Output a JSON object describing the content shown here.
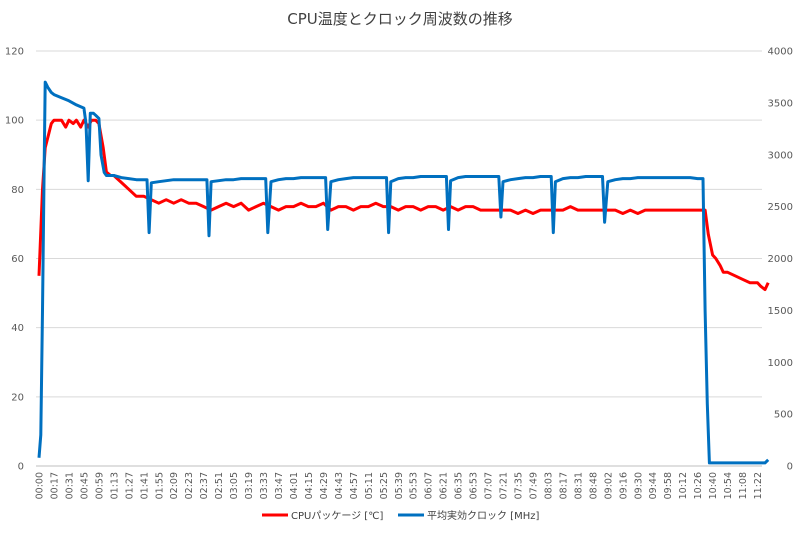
{
  "chart_data": {
    "type": "line",
    "title": "CPU温度とクロック周波数の推移",
    "x_tick_labels": [
      "00:00",
      "00:17",
      "00:31",
      "00:45",
      "00:59",
      "01:13",
      "01:27",
      "01:41",
      "01:55",
      "02:09",
      "02:23",
      "02:37",
      "02:51",
      "03:05",
      "03:19",
      "03:33",
      "03:47",
      "04:01",
      "04:15",
      "04:29",
      "04:43",
      "04:57",
      "05:11",
      "05:25",
      "05:39",
      "05:53",
      "06:07",
      "06:21",
      "06:35",
      "06:53",
      "07:07",
      "07:21",
      "07:35",
      "07:49",
      "08:03",
      "08:17",
      "08:31",
      "08:48",
      "09:02",
      "09:16",
      "09:30",
      "09:44",
      "09:58",
      "10:12",
      "10:26",
      "10:40",
      "10:54",
      "11:08",
      "11:22"
    ],
    "y_left": {
      "min": 0,
      "max": 120,
      "ticks": [
        0,
        20,
        40,
        60,
        80,
        100,
        120
      ]
    },
    "y_right": {
      "min": 0,
      "max": 4000,
      "ticks": [
        0,
        500,
        1000,
        1500,
        2000,
        2500,
        3000,
        3500,
        4000
      ]
    },
    "grid": true,
    "legend_position": "bottom",
    "series": [
      {
        "name": "CPUパッケージ [℃]",
        "axis": "left",
        "color": "#ff0000",
        "points": [
          [
            "00:00",
            55
          ],
          [
            "00:04",
            80
          ],
          [
            "00:07",
            92
          ],
          [
            "00:11",
            96
          ],
          [
            "00:14",
            99
          ],
          [
            "00:17",
            100
          ],
          [
            "00:24",
            100
          ],
          [
            "00:28",
            98
          ],
          [
            "00:31",
            100
          ],
          [
            "00:35",
            99
          ],
          [
            "00:38",
            100
          ],
          [
            "00:42",
            98
          ],
          [
            "00:45",
            100
          ],
          [
            "00:49",
            98
          ],
          [
            "00:52",
            100
          ],
          [
            "00:56",
            100
          ],
          [
            "00:59",
            99
          ],
          [
            "01:03",
            92
          ],
          [
            "01:06",
            85
          ],
          [
            "01:10",
            84
          ],
          [
            "01:13",
            84
          ],
          [
            "01:20",
            82
          ],
          [
            "01:27",
            80
          ],
          [
            "01:34",
            78
          ],
          [
            "01:41",
            78
          ],
          [
            "01:48",
            77
          ],
          [
            "01:55",
            76
          ],
          [
            "02:02",
            77
          ],
          [
            "02:09",
            76
          ],
          [
            "02:16",
            77
          ],
          [
            "02:23",
            76
          ],
          [
            "02:30",
            76
          ],
          [
            "02:37",
            75
          ],
          [
            "02:44",
            74
          ],
          [
            "02:51",
            75
          ],
          [
            "02:58",
            76
          ],
          [
            "03:05",
            75
          ],
          [
            "03:12",
            76
          ],
          [
            "03:19",
            74
          ],
          [
            "03:26",
            75
          ],
          [
            "03:33",
            76
          ],
          [
            "03:40",
            75
          ],
          [
            "03:47",
            74
          ],
          [
            "03:54",
            75
          ],
          [
            "04:01",
            75
          ],
          [
            "04:08",
            76
          ],
          [
            "04:15",
            75
          ],
          [
            "04:22",
            75
          ],
          [
            "04:29",
            76
          ],
          [
            "04:36",
            74
          ],
          [
            "04:43",
            75
          ],
          [
            "04:50",
            75
          ],
          [
            "04:57",
            74
          ],
          [
            "05:04",
            75
          ],
          [
            "05:11",
            75
          ],
          [
            "05:18",
            76
          ],
          [
            "05:25",
            75
          ],
          [
            "05:32",
            75
          ],
          [
            "05:39",
            74
          ],
          [
            "05:46",
            75
          ],
          [
            "05:53",
            75
          ],
          [
            "06:00",
            74
          ],
          [
            "06:07",
            75
          ],
          [
            "06:14",
            75
          ],
          [
            "06:21",
            74
          ],
          [
            "06:28",
            75
          ],
          [
            "06:35",
            74
          ],
          [
            "06:44",
            75
          ],
          [
            "06:53",
            75
          ],
          [
            "07:00",
            74
          ],
          [
            "07:07",
            74
          ],
          [
            "07:14",
            74
          ],
          [
            "07:21",
            74
          ],
          [
            "07:28",
            74
          ],
          [
            "07:35",
            73
          ],
          [
            "07:42",
            74
          ],
          [
            "07:49",
            73
          ],
          [
            "07:56",
            74
          ],
          [
            "08:03",
            74
          ],
          [
            "08:10",
            74
          ],
          [
            "08:17",
            74
          ],
          [
            "08:24",
            75
          ],
          [
            "08:31",
            74
          ],
          [
            "08:40",
            74
          ],
          [
            "08:48",
            74
          ],
          [
            "08:55",
            74
          ],
          [
            "09:02",
            74
          ],
          [
            "09:09",
            74
          ],
          [
            "09:16",
            73
          ],
          [
            "09:23",
            74
          ],
          [
            "09:30",
            73
          ],
          [
            "09:37",
            74
          ],
          [
            "09:44",
            74
          ],
          [
            "09:51",
            74
          ],
          [
            "09:58",
            74
          ],
          [
            "10:05",
            74
          ],
          [
            "10:12",
            74
          ],
          [
            "10:19",
            74
          ],
          [
            "10:26",
            74
          ],
          [
            "10:33",
            74
          ],
          [
            "10:36",
            67
          ],
          [
            "10:40",
            61
          ],
          [
            "10:43",
            60
          ],
          [
            "10:47",
            58
          ],
          [
            "10:50",
            56
          ],
          [
            "10:54",
            56
          ],
          [
            "11:01",
            55
          ],
          [
            "11:08",
            54
          ],
          [
            "11:15",
            53
          ],
          [
            "11:22",
            53
          ],
          [
            "11:25",
            52
          ],
          [
            "11:29",
            51
          ],
          [
            "11:32",
            53
          ]
        ]
      },
      {
        "name": "平均実効クロック [MHz]",
        "axis": "right",
        "color": "#0070c0",
        "points": [
          [
            "00:00",
            80
          ],
          [
            "00:02",
            300
          ],
          [
            "00:04",
            1500
          ],
          [
            "00:06",
            3000
          ],
          [
            "00:07",
            3700
          ],
          [
            "00:10",
            3650
          ],
          [
            "00:14",
            3600
          ],
          [
            "00:17",
            3580
          ],
          [
            "00:24",
            3550
          ],
          [
            "00:31",
            3520
          ],
          [
            "00:38",
            3480
          ],
          [
            "00:45",
            3450
          ],
          [
            "00:47",
            3300
          ],
          [
            "00:49",
            2750
          ],
          [
            "00:51",
            3400
          ],
          [
            "00:54",
            3400
          ],
          [
            "00:56",
            3380
          ],
          [
            "00:59",
            3350
          ],
          [
            "01:01",
            3000
          ],
          [
            "01:04",
            2830
          ],
          [
            "01:06",
            2800
          ],
          [
            "01:13",
            2800
          ],
          [
            "01:20",
            2780
          ],
          [
            "01:27",
            2770
          ],
          [
            "01:34",
            2760
          ],
          [
            "01:41",
            2760
          ],
          [
            "01:44",
            2760
          ],
          [
            "01:46",
            2250
          ],
          [
            "01:48",
            2730
          ],
          [
            "01:55",
            2740
          ],
          [
            "02:02",
            2750
          ],
          [
            "02:09",
            2760
          ],
          [
            "02:16",
            2760
          ],
          [
            "02:23",
            2760
          ],
          [
            "02:30",
            2760
          ],
          [
            "02:37",
            2760
          ],
          [
            "02:40",
            2760
          ],
          [
            "02:42",
            2220
          ],
          [
            "02:44",
            2740
          ],
          [
            "02:51",
            2750
          ],
          [
            "02:58",
            2760
          ],
          [
            "03:05",
            2760
          ],
          [
            "03:12",
            2770
          ],
          [
            "03:19",
            2770
          ],
          [
            "03:26",
            2770
          ],
          [
            "03:33",
            2770
          ],
          [
            "03:35",
            2770
          ],
          [
            "03:37",
            2250
          ],
          [
            "03:40",
            2740
          ],
          [
            "03:47",
            2760
          ],
          [
            "03:54",
            2770
          ],
          [
            "04:01",
            2770
          ],
          [
            "04:08",
            2780
          ],
          [
            "04:15",
            2780
          ],
          [
            "04:22",
            2780
          ],
          [
            "04:29",
            2780
          ],
          [
            "04:31",
            2780
          ],
          [
            "04:33",
            2280
          ],
          [
            "04:36",
            2740
          ],
          [
            "04:43",
            2760
          ],
          [
            "04:50",
            2770
          ],
          [
            "04:57",
            2780
          ],
          [
            "05:04",
            2780
          ],
          [
            "05:11",
            2780
          ],
          [
            "05:18",
            2780
          ],
          [
            "05:25",
            2780
          ],
          [
            "05:28",
            2780
          ],
          [
            "05:30",
            2250
          ],
          [
            "05:32",
            2740
          ],
          [
            "05:39",
            2770
          ],
          [
            "05:46",
            2780
          ],
          [
            "05:53",
            2780
          ],
          [
            "06:00",
            2790
          ],
          [
            "06:07",
            2790
          ],
          [
            "06:14",
            2790
          ],
          [
            "06:21",
            2790
          ],
          [
            "06:24",
            2790
          ],
          [
            "06:26",
            2280
          ],
          [
            "06:28",
            2750
          ],
          [
            "06:35",
            2780
          ],
          [
            "06:44",
            2790
          ],
          [
            "06:53",
            2790
          ],
          [
            "07:00",
            2790
          ],
          [
            "07:07",
            2790
          ],
          [
            "07:14",
            2790
          ],
          [
            "07:17",
            2790
          ],
          [
            "07:19",
            2400
          ],
          [
            "07:21",
            2740
          ],
          [
            "07:28",
            2760
          ],
          [
            "07:35",
            2770
          ],
          [
            "07:42",
            2780
          ],
          [
            "07:49",
            2780
          ],
          [
            "07:56",
            2790
          ],
          [
            "08:03",
            2790
          ],
          [
            "08:06",
            2790
          ],
          [
            "08:08",
            2250
          ],
          [
            "08:10",
            2740
          ],
          [
            "08:17",
            2770
          ],
          [
            "08:24",
            2780
          ],
          [
            "08:31",
            2780
          ],
          [
            "08:40",
            2790
          ],
          [
            "08:48",
            2790
          ],
          [
            "08:55",
            2790
          ],
          [
            "08:57",
            2790
          ],
          [
            "08:59",
            2350
          ],
          [
            "09:02",
            2740
          ],
          [
            "09:09",
            2760
          ],
          [
            "09:16",
            2770
          ],
          [
            "09:23",
            2770
          ],
          [
            "09:30",
            2780
          ],
          [
            "09:37",
            2780
          ],
          [
            "09:44",
            2780
          ],
          [
            "09:51",
            2780
          ],
          [
            "09:58",
            2780
          ],
          [
            "10:05",
            2780
          ],
          [
            "10:12",
            2780
          ],
          [
            "10:19",
            2780
          ],
          [
            "10:26",
            2770
          ],
          [
            "10:31",
            2770
          ],
          [
            "10:33",
            1500
          ],
          [
            "10:35",
            600
          ],
          [
            "10:37",
            30
          ],
          [
            "10:40",
            30
          ],
          [
            "10:54",
            30
          ],
          [
            "11:08",
            30
          ],
          [
            "11:22",
            30
          ],
          [
            "11:29",
            30
          ],
          [
            "11:32",
            60
          ]
        ]
      }
    ]
  }
}
